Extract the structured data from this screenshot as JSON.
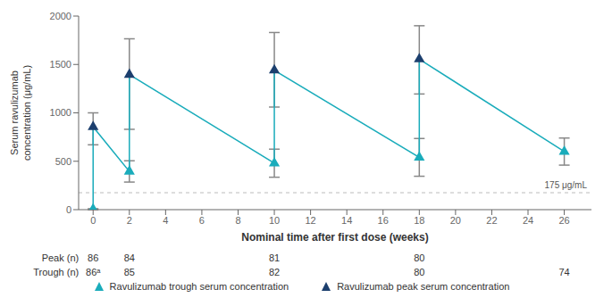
{
  "chart_data": {
    "type": "scatter",
    "xlabel": "Nominal time after first dose (weeks)",
    "ylabel": "Serum ravulizumab\nconcentration (μg/mL)",
    "xlim": [
      -0.8,
      27.5
    ],
    "ylim": [
      0,
      2000
    ],
    "xticks": [
      0,
      2,
      4,
      6,
      8,
      10,
      12,
      14,
      16,
      18,
      20,
      22,
      24,
      26
    ],
    "yticks": [
      0,
      500,
      1000,
      1500,
      2000
    ],
    "grid": false,
    "legend": "bottom",
    "series": [
      {
        "name": "Ravulizumab trough serum concentration",
        "color": "#1AACBB",
        "marker": "triangle",
        "x": [
          0,
          2,
          10,
          18,
          26
        ],
        "values": [
          5,
          395,
          480,
          540,
          600
        ],
        "error_low": [
          5,
          110,
          145,
          195,
          140
        ],
        "error_high": [
          5,
          110,
          145,
          195,
          140
        ]
      },
      {
        "name": "Ravulizumab peak serum concentration",
        "color": "#1C3F6E",
        "marker": "triangle",
        "x": [
          0,
          2,
          10,
          18
        ],
        "values": [
          855,
          1395,
          1440,
          1555
        ],
        "error_low": [
          185,
          565,
          380,
          360
        ],
        "error_high": [
          145,
          370,
          390,
          345
        ]
      }
    ],
    "reference_line": {
      "value": 175,
      "label": "175 μg/mL",
      "color": "#BBBBBB",
      "line_style": "dashed"
    },
    "table": {
      "rows": [
        {
          "label": "Peak (n)",
          "x": [
            0,
            2,
            10,
            18
          ],
          "labels": [
            "86",
            "84",
            "81",
            "80"
          ]
        },
        {
          "label": "Trough (n)",
          "x": [
            0,
            2,
            10,
            18,
            26
          ],
          "labels": [
            "86ᵃ",
            "85",
            "82",
            "80",
            "74"
          ]
        }
      ]
    }
  }
}
